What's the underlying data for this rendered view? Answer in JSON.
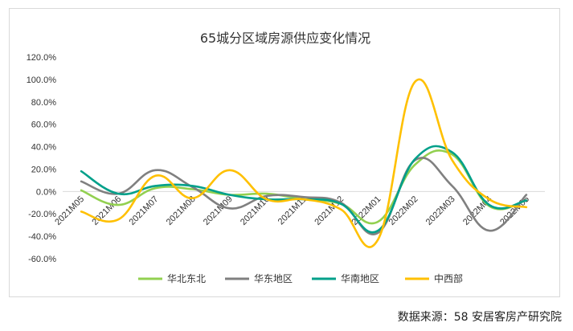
{
  "source_note": "数据来源：58 安居客房产研究院",
  "chart_data": {
    "type": "line",
    "title": "65城分区域房源供应变化情况",
    "xlabel": "",
    "ylabel": "",
    "categories": [
      "2021M05",
      "2021M06",
      "2021M07",
      "2021M08",
      "2021M09",
      "2021M10",
      "2021M11",
      "2021M12",
      "2022M01",
      "2022M02",
      "2022M03",
      "2022M04",
      "2022M05"
    ],
    "ylim": [
      -60,
      120
    ],
    "yticks": [
      -60,
      -40,
      -20,
      0,
      20,
      40,
      60,
      80,
      100,
      120
    ],
    "ytick_format": "percent_1dp",
    "grid": false,
    "smooth": true,
    "legend_position": "bottom",
    "series": [
      {
        "name": "华北东北",
        "color": "#92d050",
        "values": [
          1,
          -12,
          3,
          2,
          -3,
          -2,
          -7,
          -11,
          -27,
          24,
          33,
          -13,
          -8
        ]
      },
      {
        "name": "华东地区",
        "color": "#808080",
        "values": [
          9,
          -2,
          19,
          4,
          -15,
          -4,
          -5,
          -10,
          -37,
          28,
          5,
          -35,
          -3
        ]
      },
      {
        "name": "华南地区",
        "color": "#00a08a",
        "values": [
          18,
          -2,
          5,
          5,
          -3,
          -7,
          -7,
          -11,
          -35,
          29,
          35,
          -12,
          -8
        ]
      },
      {
        "name": "中西部",
        "color": "#ffc000",
        "values": [
          -18,
          -25,
          14,
          -6,
          19,
          -7,
          -7,
          -16,
          -43,
          98,
          28,
          -7,
          -14
        ]
      }
    ]
  }
}
